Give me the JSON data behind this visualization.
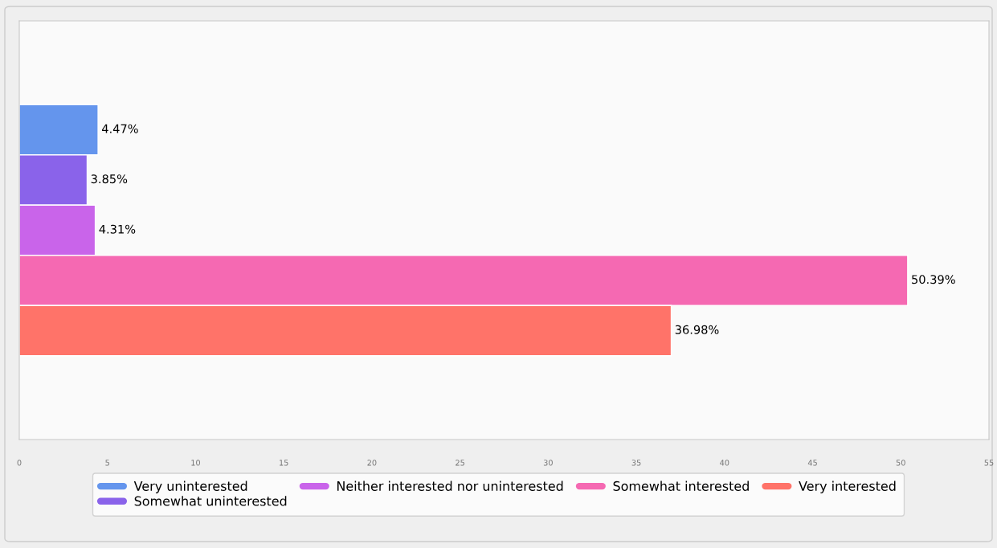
{
  "chart_data": {
    "type": "bar",
    "orientation": "horizontal",
    "categories": [
      null
    ],
    "series": [
      {
        "name": "Very uninterested",
        "color": "#6495ed",
        "values": [
          4.47
        ],
        "value_labels": [
          "4.47%"
        ]
      },
      {
        "name": "Somewhat uninterested",
        "color": "#8a63ea",
        "values": [
          3.85
        ],
        "value_labels": [
          "3.85%"
        ]
      },
      {
        "name": "Neither interested nor uninterested",
        "color": "#c964ea",
        "values": [
          4.31
        ],
        "value_labels": [
          "4.31%"
        ]
      },
      {
        "name": "Somewhat interested",
        "color": "#f569b2",
        "values": [
          50.39
        ],
        "value_labels": [
          "50.39%"
        ]
      },
      {
        "name": "Very interested",
        "color": "#ff7369",
        "values": [
          36.98
        ],
        "value_labels": [
          "36.98%"
        ]
      }
    ],
    "xlim": [
      0,
      55
    ],
    "xticks": [
      0,
      5,
      10,
      15,
      20,
      25,
      30,
      35,
      40,
      45,
      50,
      55
    ],
    "legend": "bottom",
    "tick_labels": "x"
  }
}
